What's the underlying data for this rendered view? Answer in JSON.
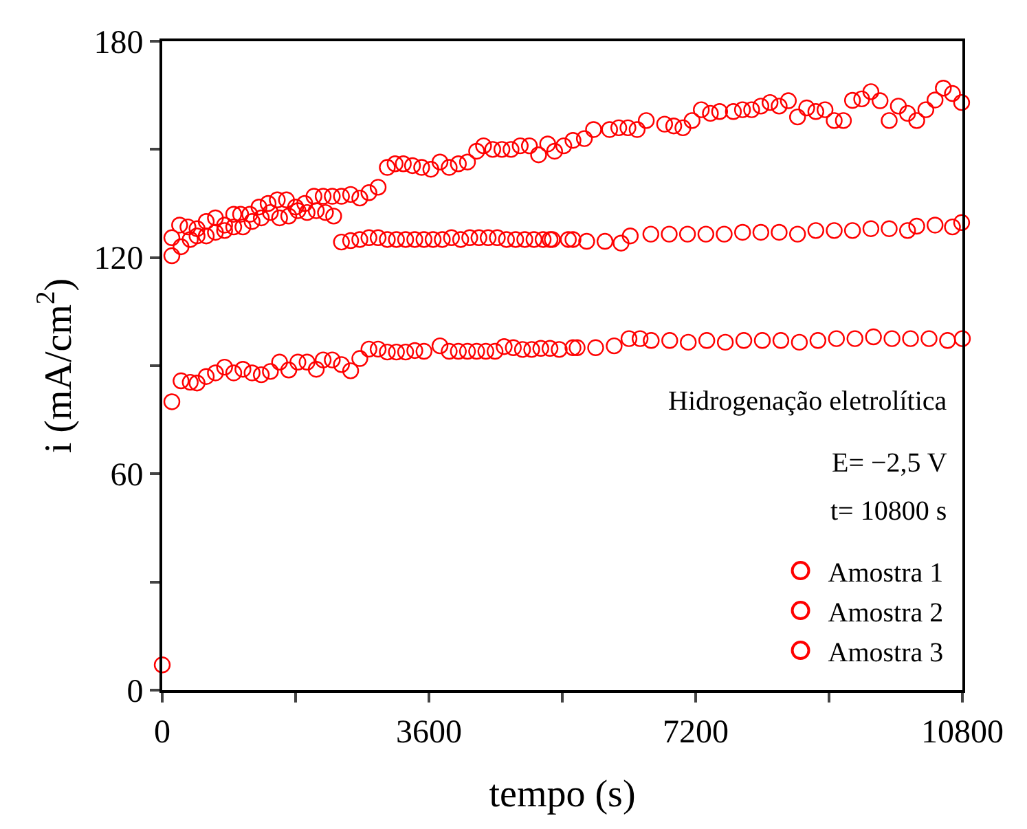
{
  "chart_data": {
    "type": "scatter",
    "xlabel": "tempo (s)",
    "ylabel": "i (mA/cm$^{2}$)",
    "xlim": [
      0,
      10800
    ],
    "xticks": [
      0,
      {
        "value": 1800,
        "label": null
      },
      3600,
      {
        "value": 5400,
        "label": null
      },
      7200,
      {
        "value": 9000,
        "label": null
      },
      10800
    ],
    "ylim": [
      0,
      180
    ],
    "yticks": [
      0,
      {
        "value": 30,
        "label": null
      },
      60,
      {
        "value": 90,
        "label": null
      },
      120,
      {
        "value": 150,
        "label": null
      },
      180
    ],
    "legend": "bottom right",
    "marker": "circle",
    "annotations": [
      "Hidrogenação eletrolítica",
      "E= −2,5 V",
      "t= 10800 s"
    ],
    "series": [
      {
        "name": "Amostra 1",
        "color": "#ff0000",
        "x": [
          130,
          235,
          347,
          470,
          594,
          718,
          842,
          965,
          1058,
          1182,
          1306,
          1429,
          1553,
          1677,
          1800,
          1924,
          2048,
          2172,
          2295,
          2419,
          2543,
          2667,
          2790,
          2914,
          3038,
          3143,
          3254,
          3378,
          3502,
          3626,
          3749,
          3873,
          3997,
          4120,
          4244,
          4337,
          4461,
          4585,
          4708,
          4832,
          4956,
          5080,
          5203,
          5296,
          5420,
          5544,
          5698,
          5822,
          6038,
          6162,
          6286,
          6410,
          6533,
          6781,
          6904,
          7028,
          7152,
          7276,
          7399,
          7523,
          7709,
          7832,
          7956,
          8080,
          8204,
          8327,
          8451,
          8575,
          8699,
          8822,
          8946,
          9070,
          9194,
          9317,
          9441,
          9565,
          9689,
          9812,
          9936,
          10060,
          10184,
          10307,
          10431,
          10543,
          10666,
          10790
        ],
        "values": [
          125.5,
          129,
          128.5,
          128,
          130,
          131,
          129,
          132,
          132,
          132,
          134,
          135,
          136,
          136,
          134,
          135,
          137,
          137,
          137,
          137,
          137.5,
          136.5,
          138,
          139.5,
          145,
          146,
          146,
          145.5,
          145,
          144.5,
          146.5,
          145,
          146,
          146.5,
          149.5,
          151,
          150,
          150,
          150,
          151,
          151,
          148.5,
          151.5,
          149.5,
          151,
          152.5,
          153,
          155.5,
          155.5,
          156,
          156,
          155.5,
          158,
          157,
          156.5,
          156,
          158,
          161,
          160,
          160.5,
          160.5,
          161,
          161,
          162,
          163,
          162,
          163.5,
          159,
          161.5,
          160.5,
          161,
          158,
          158,
          163.6,
          164,
          166,
          163.5,
          158,
          162,
          160,
          158,
          161,
          163.7,
          167,
          165.5,
          163
        ]
      },
      {
        "name": "Amostra 2",
        "color": "#ff0000",
        "x": [
          130,
          254,
          378,
          470,
          594,
          718,
          842,
          965,
          1089,
          1213,
          1337,
          1460,
          1584,
          1708,
          1831,
          1955,
          2079,
          2203,
          2314,
          2419,
          2543,
          2667,
          2790,
          2914,
          3038,
          3161,
          3285,
          3409,
          3533,
          3656,
          3780,
          3904,
          4028,
          4151,
          4275,
          4399,
          4523,
          4646,
          4770,
          4894,
          5018,
          5141,
          5265,
          5544,
          5234,
          5481,
          5729,
          5976,
          6193,
          6317,
          6595,
          6843,
          7090,
          7338,
          7585,
          7833,
          8080,
          8327,
          8575,
          8822,
          9070,
          9317,
          9565,
          9812,
          10060,
          10184,
          10431,
          10666,
          10790
        ],
        "values": [
          120.5,
          123,
          125,
          126,
          126,
          127,
          127.5,
          128.5,
          128.5,
          130,
          131,
          132.5,
          131,
          131.5,
          133,
          132.5,
          133,
          132.5,
          131.5,
          124.3,
          124.7,
          125,
          125.5,
          125.5,
          125,
          125,
          125,
          125,
          125,
          125,
          125,
          125.5,
          125,
          125.5,
          125.5,
          125.5,
          125.5,
          125,
          125,
          125,
          125,
          125,
          125,
          125,
          125,
          125,
          124.5,
          124.5,
          124,
          126,
          126.5,
          126.5,
          126.5,
          126.5,
          126.5,
          127,
          127,
          127,
          126.5,
          127.5,
          127.5,
          127.5,
          128,
          128,
          127.5,
          128.7,
          129,
          128.5,
          129.7
        ]
      },
      {
        "name": "Amostra 3",
        "color": "#ff0000",
        "x": [
          0,
          130,
          254,
          378,
          470,
          594,
          718,
          842,
          965,
          1089,
          1213,
          1337,
          1460,
          1584,
          1708,
          1831,
          1955,
          2079,
          2172,
          2295,
          2419,
          2543,
          2667,
          2790,
          2914,
          3038,
          3161,
          3285,
          3409,
          3533,
          3749,
          3873,
          3997,
          4120,
          4244,
          4368,
          4492,
          4615,
          4739,
          4863,
          4987,
          5110,
          5234,
          5358,
          5544,
          5600,
          5850,
          6100,
          6300,
          6450,
          6600,
          6850,
          7100,
          7350,
          7600,
          7850,
          8100,
          8350,
          8600,
          8850,
          9100,
          9350,
          9600,
          9850,
          10100,
          10350,
          10600,
          10800
        ],
        "values": [
          7,
          80,
          85.8,
          85.4,
          85.2,
          87,
          88,
          89.6,
          88,
          89,
          88,
          87.5,
          88.4,
          91,
          88.8,
          91,
          91,
          89,
          91.6,
          91.6,
          90.3,
          88.6,
          92,
          94.6,
          94.6,
          93.8,
          93.8,
          93.8,
          94.2,
          94,
          95.5,
          94,
          94,
          94,
          94,
          94,
          94,
          95.3,
          95,
          94.5,
          94.5,
          94.8,
          94.8,
          94.5,
          95,
          95,
          95,
          95.5,
          97.5,
          97.5,
          97,
          97,
          96.5,
          97,
          96.5,
          97,
          97,
          97,
          96.5,
          97,
          97.5,
          97.5,
          98,
          97.5,
          97.5,
          97.5,
          97,
          97.5
        ]
      }
    ]
  }
}
